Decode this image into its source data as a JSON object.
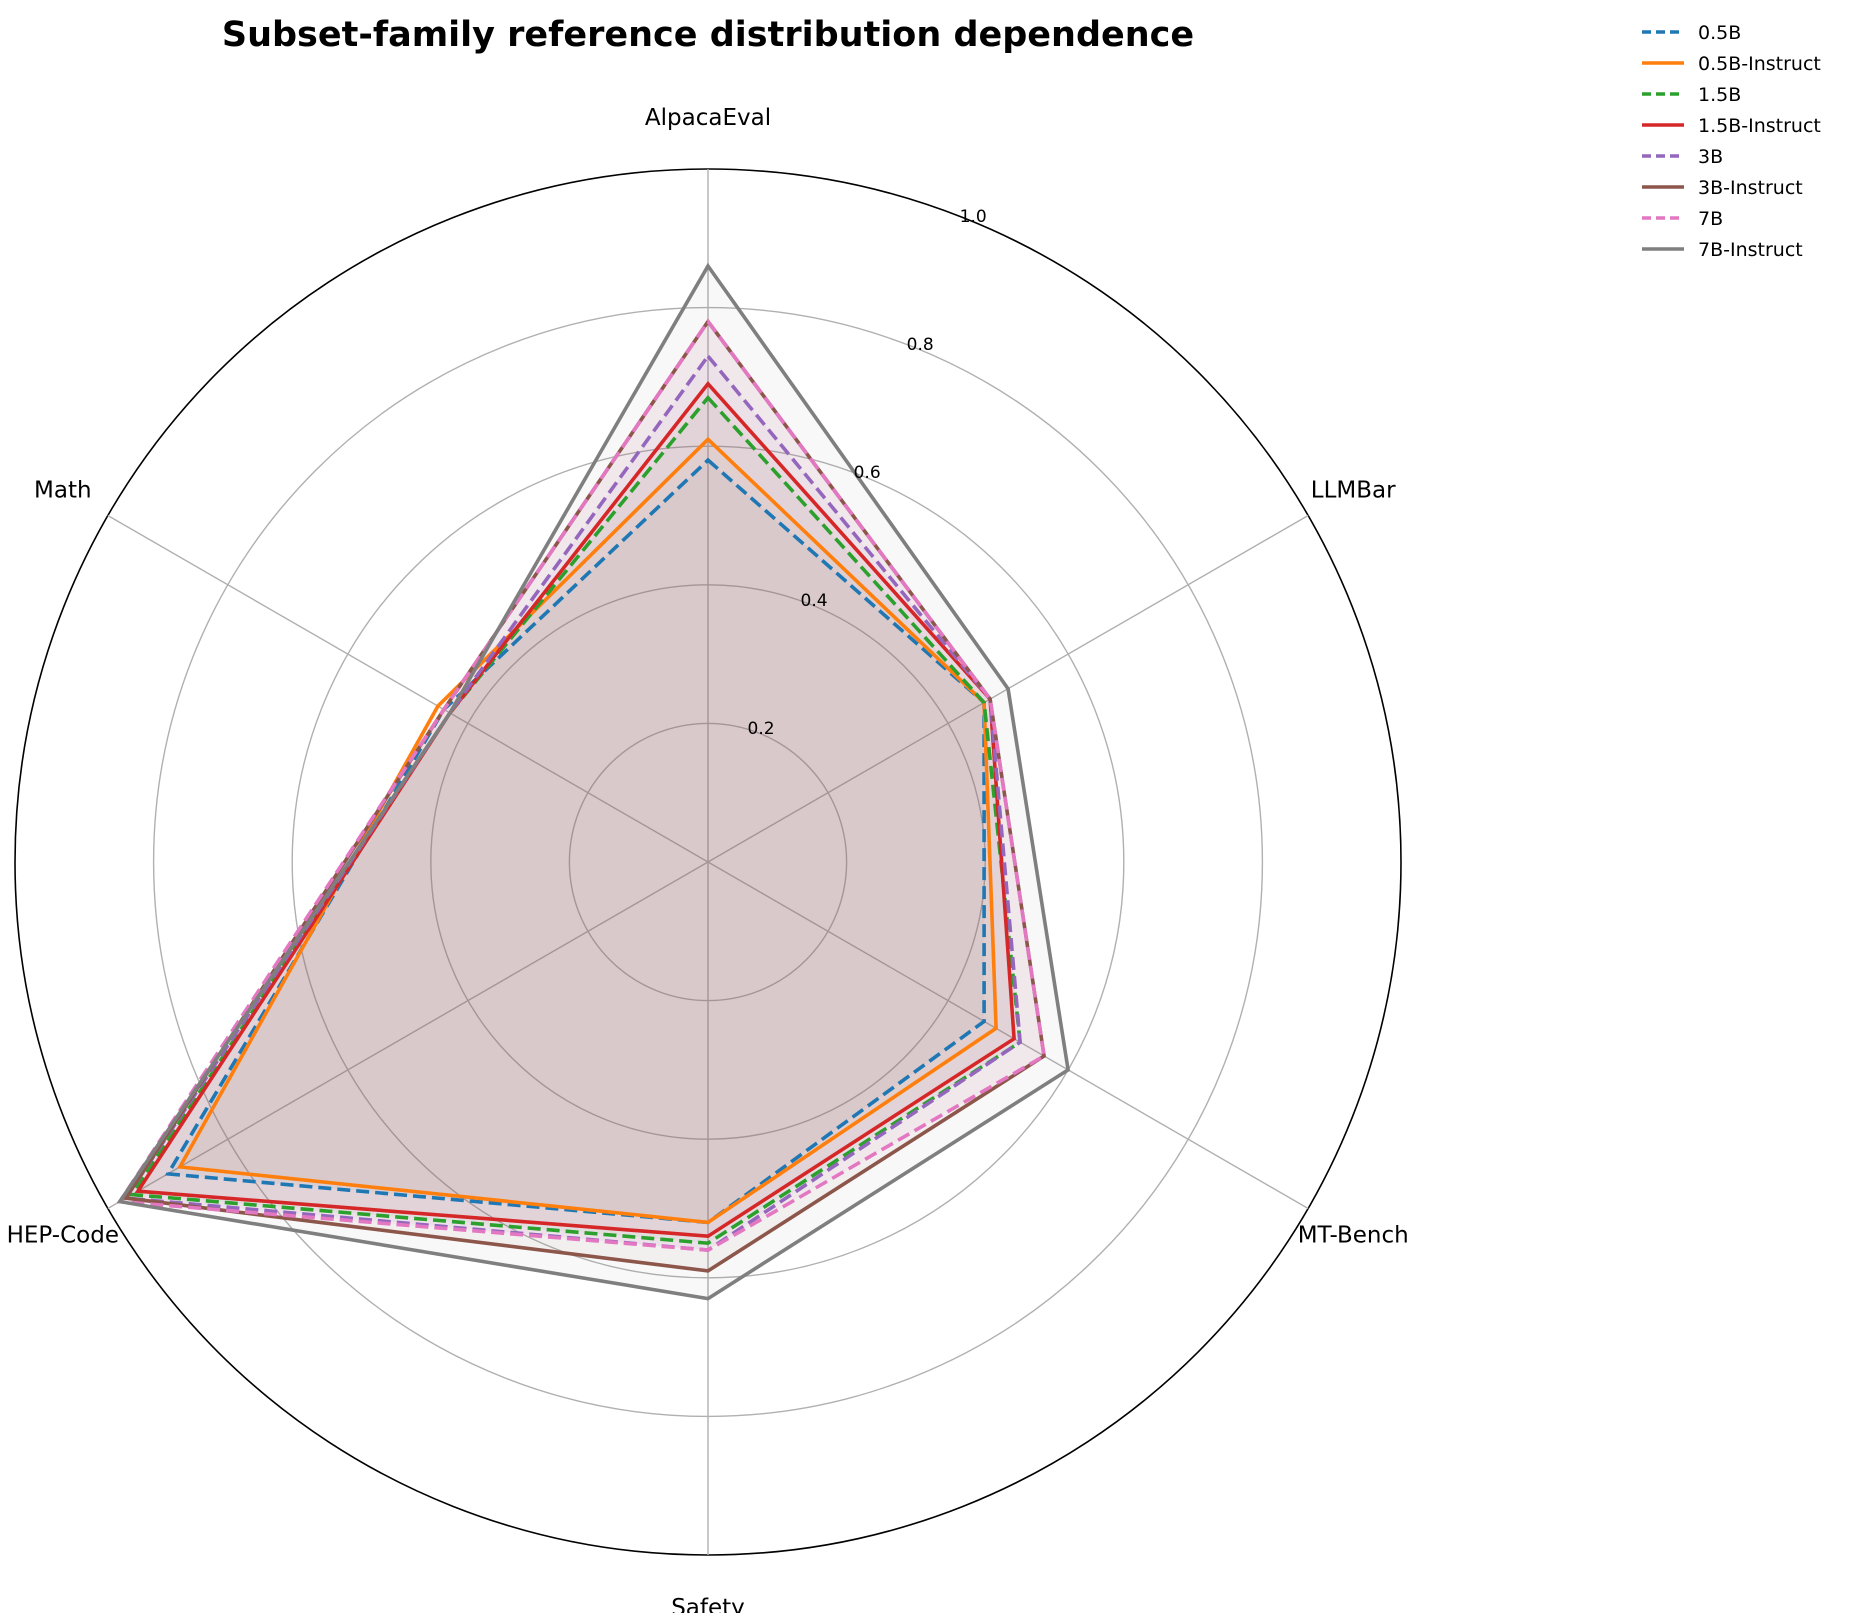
{
  "chart_data": {
    "type": "radar",
    "title": "Subset-family reference distribution dependence",
    "axes": [
      "AlpacaEval",
      "LLMBar",
      "MT-Bench",
      "Safety",
      "HEP-Code",
      "Math"
    ],
    "rlim": [
      0,
      1.0
    ],
    "rticks": [
      "0.2",
      "0.4",
      "0.6",
      "0.8",
      "1.0"
    ],
    "rtick_values": [
      0.2,
      0.4,
      0.6,
      0.8,
      1.0
    ],
    "grid": true,
    "legend_position": "upper right, outside plot",
    "series": [
      {
        "name": "0.5B",
        "values": [
          0.58,
          0.46,
          0.46,
          0.52,
          0.9,
          0.44
        ],
        "color": "#1f77b4",
        "dashed": true
      },
      {
        "name": "0.5B-Instruct",
        "values": [
          0.61,
          0.46,
          0.48,
          0.52,
          0.88,
          0.45
        ],
        "color": "#ff7f0e",
        "dashed": false
      },
      {
        "name": "1.5B",
        "values": [
          0.67,
          0.46,
          0.52,
          0.55,
          0.96,
          0.43
        ],
        "color": "#2ca02c",
        "dashed": true
      },
      {
        "name": "1.5B-Instruct",
        "values": [
          0.69,
          0.47,
          0.51,
          0.54,
          0.95,
          0.43
        ],
        "color": "#d62728",
        "dashed": false
      },
      {
        "name": "3B",
        "values": [
          0.73,
          0.47,
          0.52,
          0.56,
          0.97,
          0.43
        ],
        "color": "#9467bd",
        "dashed": true
      },
      {
        "name": "3B-Instruct",
        "values": [
          0.78,
          0.47,
          0.56,
          0.59,
          0.97,
          0.44
        ],
        "color": "#8c564b",
        "dashed": false
      },
      {
        "name": "7B",
        "values": [
          0.78,
          0.47,
          0.56,
          0.56,
          0.98,
          0.44
        ],
        "color": "#e377c2",
        "dashed": true
      },
      {
        "name": "7B-Instruct",
        "values": [
          0.86,
          0.5,
          0.6,
          0.63,
          0.98,
          0.43
        ],
        "color": "#7f7f7f",
        "dashed": false
      }
    ]
  }
}
